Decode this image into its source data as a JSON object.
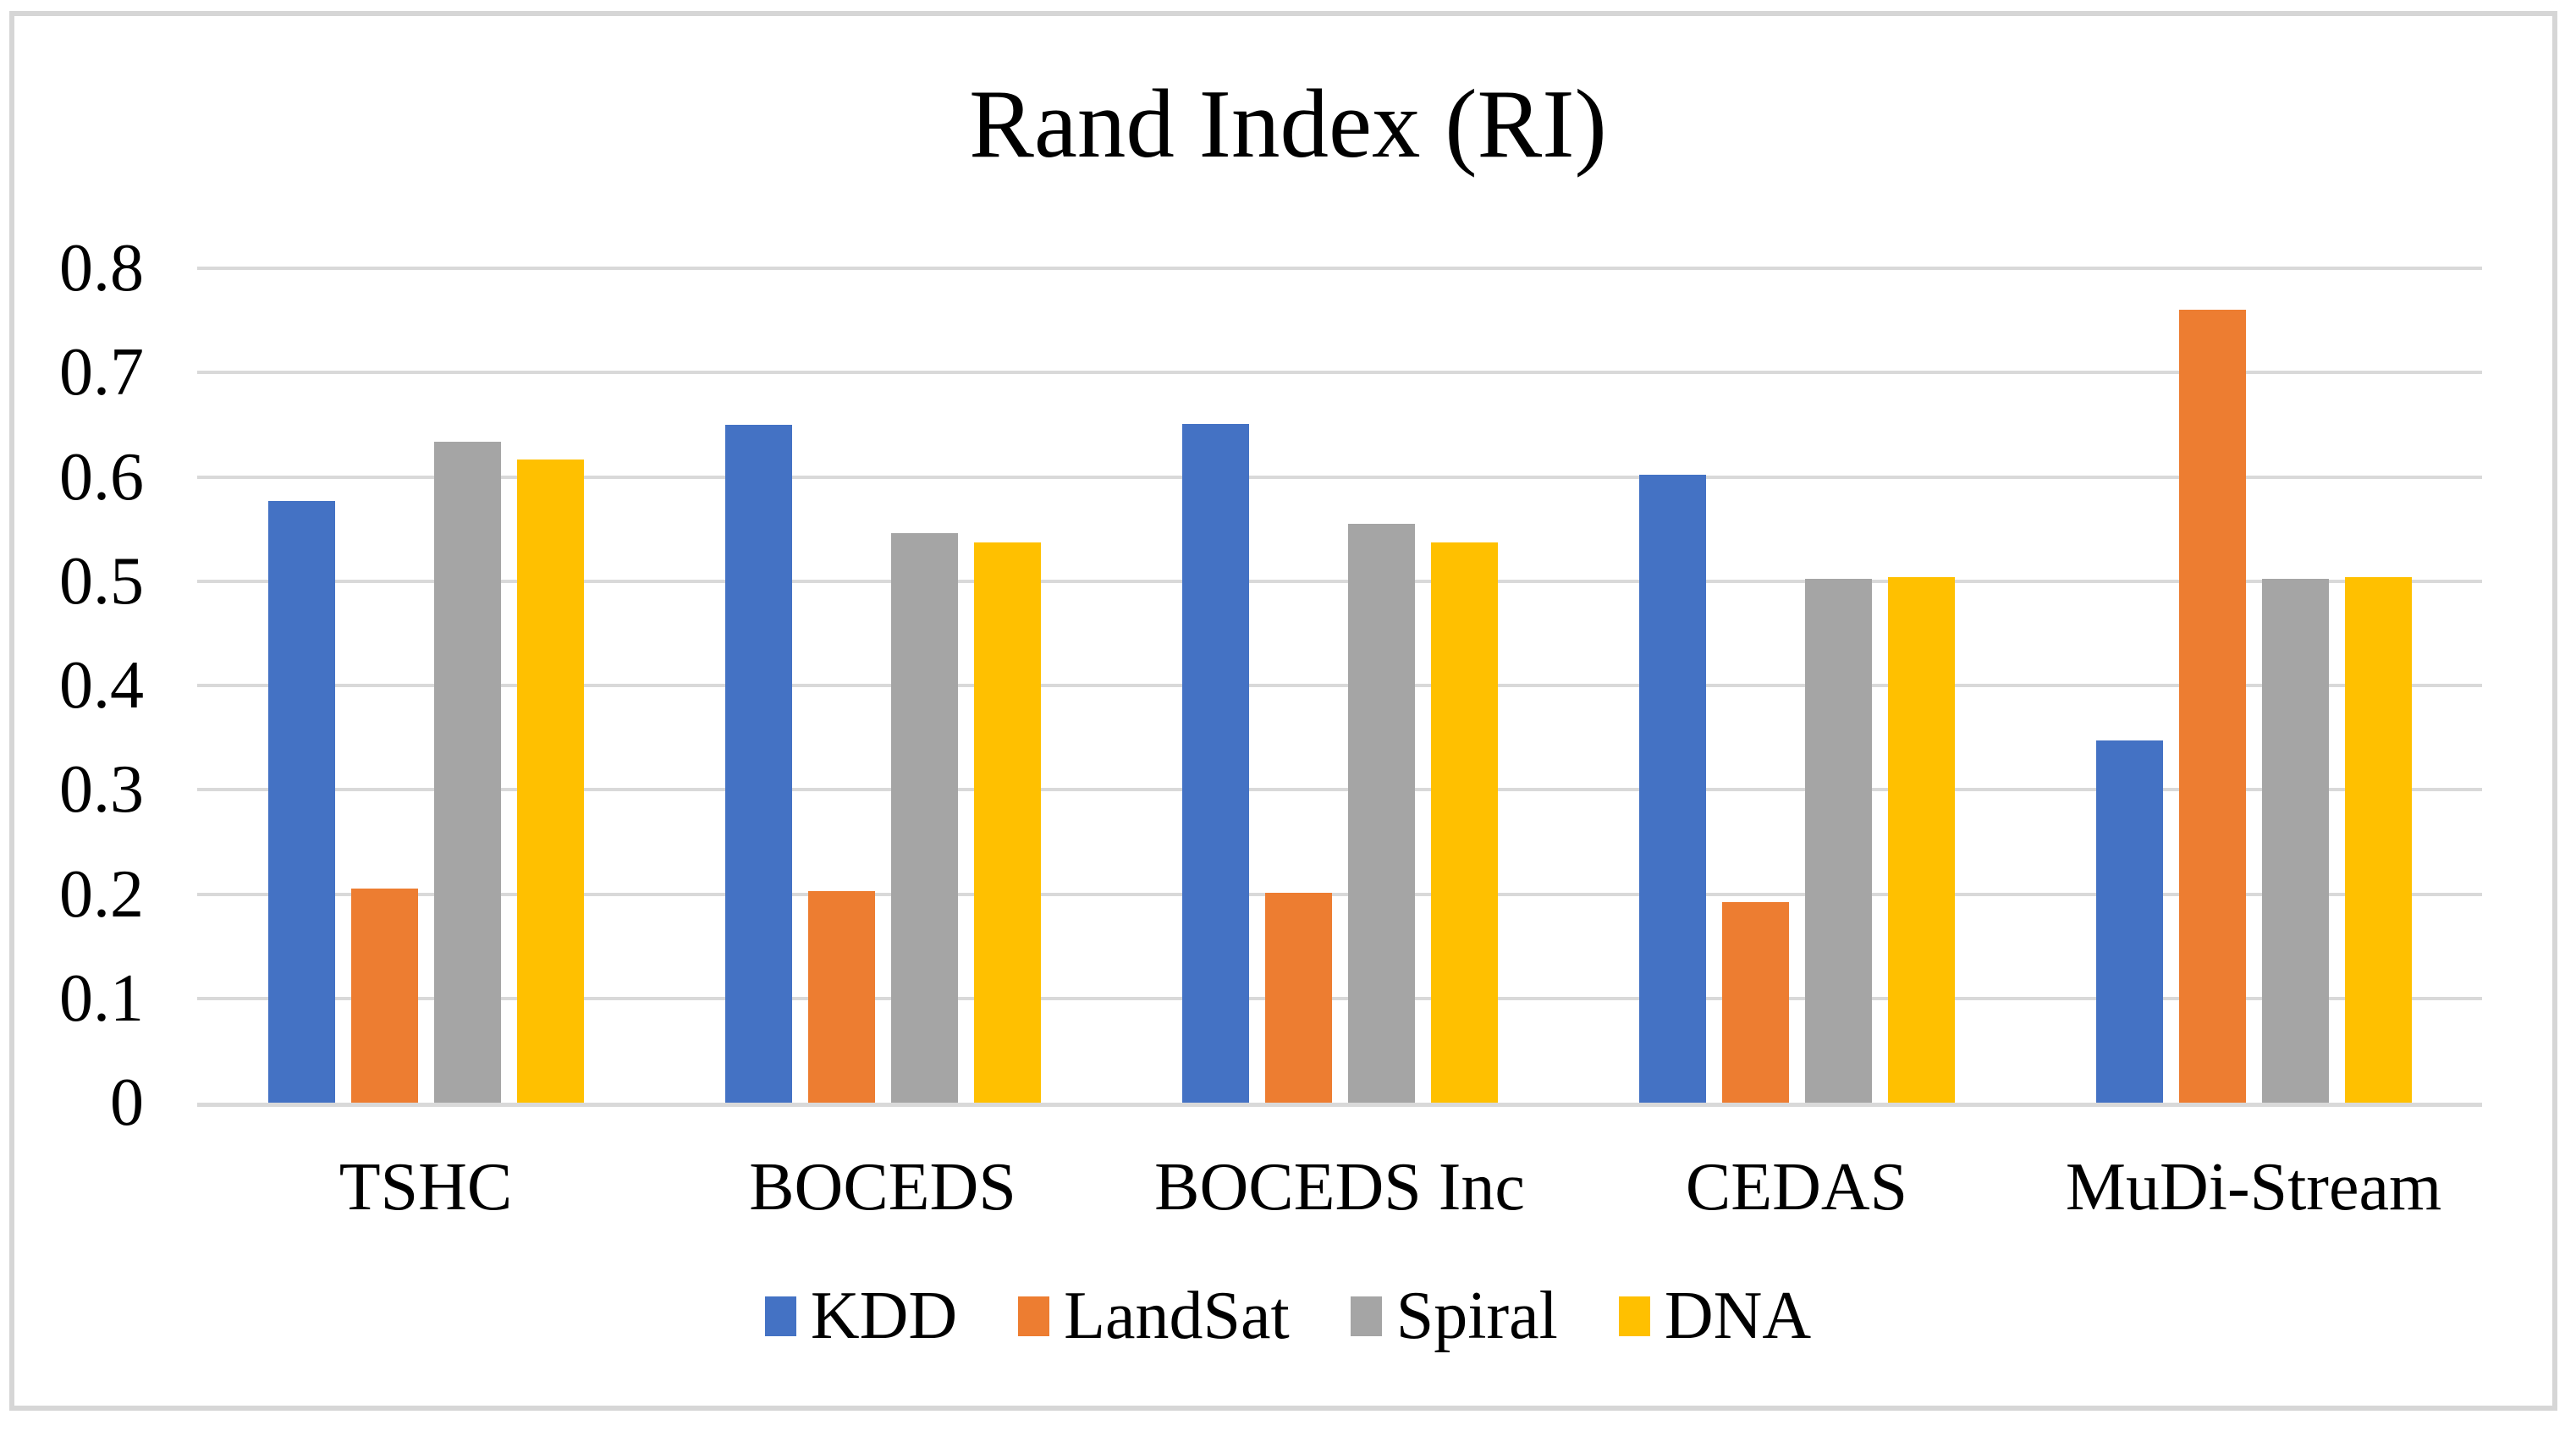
{
  "title": "Rand Index (RI)",
  "chart_data": {
    "type": "bar",
    "title": "Rand Index (RI)",
    "categories": [
      "TSHC",
      "BOCEDS",
      "BOCEDS Inc",
      "CEDAS",
      "MuDi-Stream"
    ],
    "series": [
      {
        "name": "KDD",
        "color": "#4472C4",
        "values": [
          0.577,
          0.65,
          0.651,
          0.602,
          0.347
        ]
      },
      {
        "name": "LandSat",
        "color": "#ED7D31",
        "values": [
          0.205,
          0.203,
          0.201,
          0.192,
          0.76
        ]
      },
      {
        "name": "Spiral",
        "color": "#A5A5A5",
        "values": [
          0.634,
          0.546,
          0.555,
          0.502,
          0.502
        ]
      },
      {
        "name": "DNA",
        "color": "#FFC000",
        "values": [
          0.617,
          0.537,
          0.537,
          0.504,
          0.504
        ]
      }
    ],
    "y_axis": {
      "min": 0,
      "max": 0.8,
      "tick_step": 0.1,
      "tick_labels": [
        "0",
        "0.1",
        "0.2",
        "0.3",
        "0.4",
        "0.5",
        "0.6",
        "0.7",
        "0.8"
      ]
    },
    "grid": true,
    "legend_position": "bottom",
    "legend_entries": [
      "KDD",
      "LandSat",
      "Spiral",
      "DNA"
    ],
    "colors": {
      "gridline": "#D9D9D9",
      "axis_line": "#D9D9D9",
      "figure_border": "#D6D6D6",
      "text": "#000000",
      "background": "#FFFFFF"
    }
  }
}
